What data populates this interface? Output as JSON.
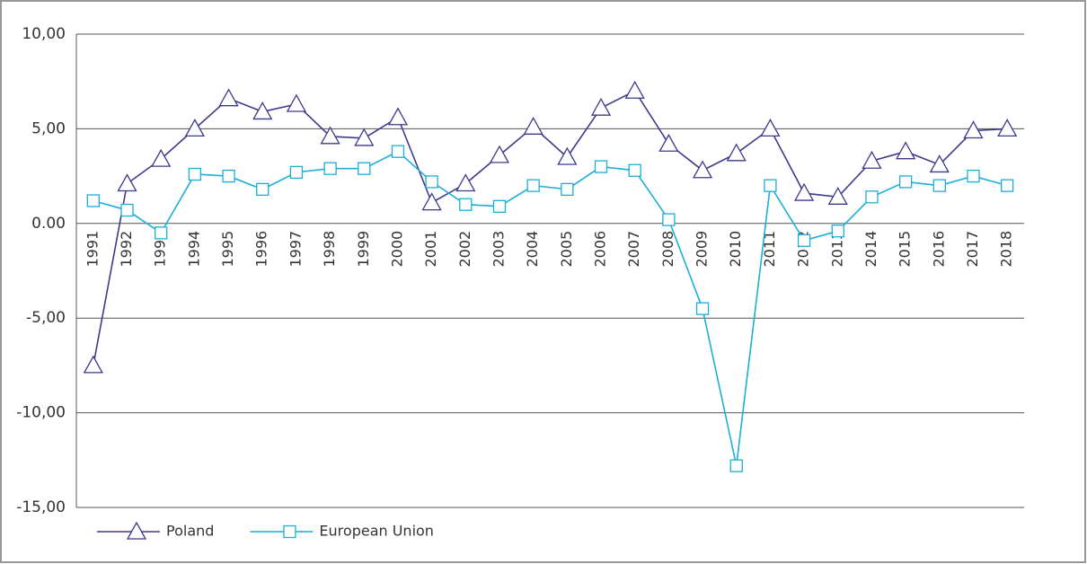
{
  "chart_data": {
    "type": "line",
    "categories": [
      "1991",
      "1992",
      "1993",
      "1994",
      "1995",
      "1996",
      "1997",
      "1998",
      "1999",
      "2000",
      "2001",
      "2002",
      "2003",
      "2004",
      "2005",
      "2006",
      "2007",
      "2008",
      "2009",
      "2010",
      "2011",
      "2012",
      "2013",
      "2014",
      "2015",
      "2016",
      "2017",
      "2018"
    ],
    "series": [
      {
        "name": "Poland",
        "color": "#3e3a8a",
        "marker": "triangle",
        "values": [
          -7.5,
          2.1,
          3.4,
          5.0,
          6.6,
          5.9,
          6.3,
          4.6,
          4.5,
          5.6,
          1.1,
          2.1,
          3.6,
          5.1,
          3.5,
          6.1,
          7.0,
          4.2,
          2.8,
          3.7,
          5.0,
          1.6,
          1.4,
          3.3,
          3.8,
          3.1,
          4.9,
          5.0
        ]
      },
      {
        "name": "European Union",
        "color": "#1aaed8",
        "marker": "square",
        "values": [
          1.2,
          0.7,
          -0.5,
          2.6,
          2.5,
          1.8,
          2.7,
          2.9,
          2.9,
          3.8,
          2.2,
          1.0,
          0.9,
          2.0,
          1.8,
          3.0,
          2.8,
          0.2,
          -4.5,
          -12.8,
          2.0,
          -0.9,
          -0.4,
          1.4,
          2.2,
          2.0,
          2.5,
          2.0
        ]
      }
    ],
    "ylim": [
      -15,
      10
    ],
    "yticks": [
      {
        "value": -15,
        "label": "-15,00"
      },
      {
        "value": -10,
        "label": "-10,00"
      },
      {
        "value": -5,
        "label": "-5,00"
      },
      {
        "value": 0,
        "label": "0.00"
      },
      {
        "value": 5,
        "label": "5,00"
      },
      {
        "value": 10,
        "label": "10,00"
      }
    ],
    "grid": true,
    "legend": "bottom-left"
  }
}
